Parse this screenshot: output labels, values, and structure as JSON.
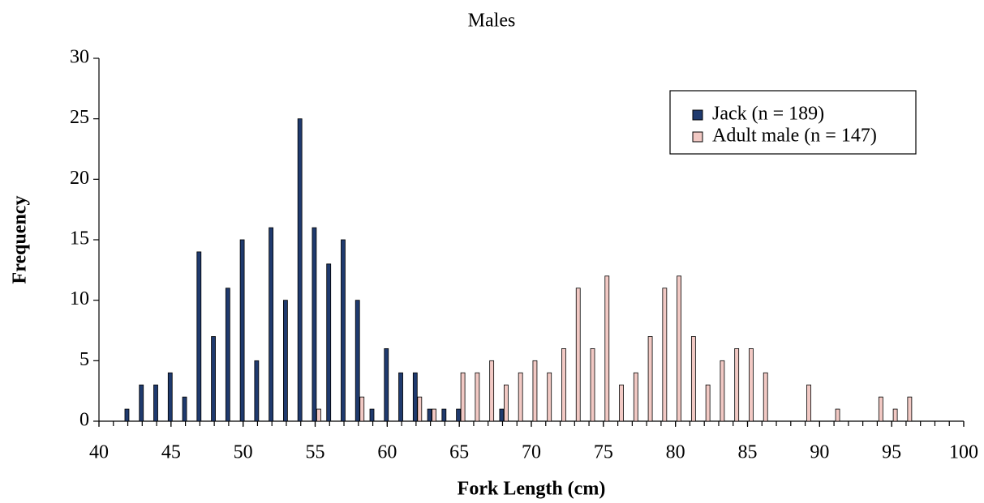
{
  "chart_data": {
    "type": "bar",
    "title": "Males",
    "x_label": "Fork Length (cm)",
    "y_label": "Frequency",
    "xlim": [
      40,
      100
    ],
    "xticks": [
      40,
      45,
      50,
      55,
      60,
      65,
      70,
      75,
      80,
      85,
      90,
      95,
      100
    ],
    "ylim": [
      0,
      30
    ],
    "yticks": [
      0,
      5,
      10,
      15,
      20,
      25,
      30
    ],
    "grid": false,
    "legend": "upper-right",
    "series": [
      {
        "name": "Jack (n = 189)",
        "color": "#1f3a6e",
        "x": [
          42,
          43,
          44,
          45,
          46,
          47,
          48,
          49,
          50,
          51,
          52,
          53,
          54,
          55,
          56,
          57,
          58,
          59,
          60,
          61,
          62,
          63,
          64,
          65,
          68
        ],
        "values": [
          1,
          3,
          3,
          4,
          2,
          14,
          7,
          11,
          15,
          5,
          16,
          10,
          25,
          16,
          13,
          15,
          10,
          1,
          6,
          4,
          4,
          1,
          1,
          1,
          1
        ]
      },
      {
        "name": "Adult male (n = 147)",
        "color": "#f2c9c4",
        "x": [
          55,
          58,
          62,
          63,
          65,
          66,
          67,
          68,
          69,
          70,
          71,
          72,
          73,
          74,
          75,
          76,
          77,
          78,
          79,
          80,
          81,
          82,
          83,
          84,
          85,
          86,
          89,
          91,
          94,
          95,
          96
        ],
        "values": [
          1,
          2,
          2,
          1,
          4,
          4,
          5,
          3,
          4,
          5,
          4,
          6,
          11,
          6,
          12,
          3,
          4,
          7,
          11,
          12,
          7,
          3,
          5,
          6,
          6,
          4,
          3,
          1,
          2,
          1,
          2
        ]
      }
    ]
  }
}
